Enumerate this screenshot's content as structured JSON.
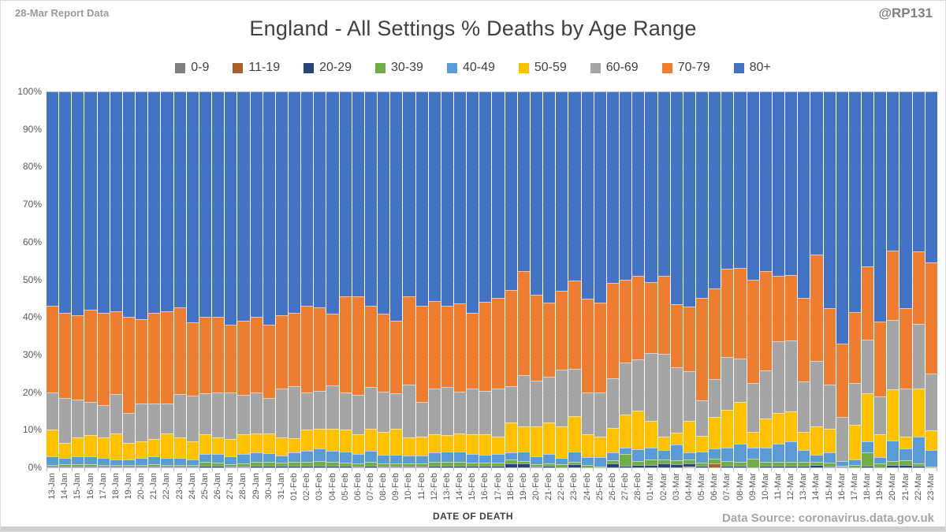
{
  "header": {
    "report_label": "28-Mar Report Data",
    "title": "England - All Settings % Deaths by Age Range",
    "handle": "@RP131"
  },
  "footer": {
    "xaxis_title": "DATE OF DEATH",
    "data_source": "Data Source: coronavirus.data.gov.uk"
  },
  "axes": {
    "y_ticks": [
      "0%",
      "10%",
      "20%",
      "30%",
      "40%",
      "50%",
      "60%",
      "70%",
      "80%",
      "90%",
      "100%"
    ]
  },
  "colors": {
    "grid": "#d9d9d9",
    "axis": "#bfbfbf",
    "text": "#595959"
  },
  "chart_data": {
    "type": "bar",
    "stacking": "percent",
    "title": "England - All Settings % Deaths by Age Range",
    "xlabel": "DATE OF DEATH",
    "ylabel": "",
    "ylim": [
      0,
      100
    ],
    "grid": true,
    "legend_position": "top",
    "categories": [
      "13-Jan",
      "14-Jan",
      "15-Jan",
      "16-Jan",
      "17-Jan",
      "18-Jan",
      "19-Jan",
      "20-Jan",
      "21-Jan",
      "22-Jan",
      "23-Jan",
      "24-Jan",
      "25-Jan",
      "26-Jan",
      "27-Jan",
      "28-Jan",
      "29-Jan",
      "30-Jan",
      "31-Jan",
      "01-Feb",
      "02-Feb",
      "03-Feb",
      "04-Feb",
      "05-Feb",
      "06-Feb",
      "07-Feb",
      "08-Feb",
      "09-Feb",
      "10-Feb",
      "11-Feb",
      "12-Feb",
      "13-Feb",
      "14-Feb",
      "15-Feb",
      "16-Feb",
      "17-Feb",
      "18-Feb",
      "19-Feb",
      "20-Feb",
      "21-Feb",
      "22-Feb",
      "23-Feb",
      "24-Feb",
      "25-Feb",
      "26-Feb",
      "27-Feb",
      "28-Feb",
      "01-Mar",
      "02-Mar",
      "03-Mar",
      "04-Mar",
      "05-Mar",
      "06-Mar",
      "07-Mar",
      "08-Mar",
      "09-Mar",
      "10-Mar",
      "11-Mar",
      "12-Mar",
      "13-Mar",
      "14-Mar",
      "15-Mar",
      "16-Mar",
      "17-Mar",
      "18-Mar",
      "19-Mar",
      "20-Mar",
      "21-Mar",
      "22-Mar",
      "23-Mar"
    ],
    "series": [
      {
        "name": "0-9",
        "color": "#7F7F7F",
        "values": [
          0,
          0,
          0,
          0,
          0,
          0,
          0,
          0,
          0,
          0,
          0,
          0,
          0,
          0,
          0,
          0,
          0,
          0,
          0,
          0,
          0,
          0,
          0,
          0,
          0,
          0,
          0,
          0,
          0,
          0,
          0,
          0,
          0,
          0,
          0,
          0,
          0,
          0,
          0,
          0,
          0,
          0,
          0,
          0,
          0,
          0,
          0,
          0,
          0,
          0,
          0.3,
          0,
          0,
          0,
          0,
          0,
          0,
          0,
          0,
          0,
          0,
          0,
          0,
          0,
          0,
          0,
          0,
          0,
          0,
          0
        ]
      },
      {
        "name": "11-19",
        "color": "#A9622C",
        "values": [
          0,
          0,
          0,
          0,
          0,
          0,
          0,
          0,
          0,
          0,
          0,
          0,
          0,
          0,
          0,
          0,
          0,
          0,
          0,
          0,
          0,
          0,
          0,
          0,
          0,
          0,
          0,
          0,
          0,
          0,
          0,
          0,
          0,
          0,
          0,
          0,
          0,
          0,
          0,
          0,
          0,
          0,
          0,
          0,
          0,
          0,
          0,
          0,
          0,
          0,
          0,
          0,
          1.1,
          0,
          0,
          0,
          0,
          0,
          0,
          0,
          0,
          0,
          0,
          0,
          0,
          0,
          0,
          0,
          0,
          0
        ]
      },
      {
        "name": "20-29",
        "color": "#264478",
        "values": [
          0.2,
          0.3,
          0.3,
          0.3,
          0.2,
          0.2,
          0.2,
          0.2,
          0.3,
          0.2,
          0.2,
          0.2,
          0.5,
          0.4,
          0.3,
          0.3,
          0.5,
          0.5,
          0.4,
          0.5,
          0.5,
          0.5,
          0.5,
          0.4,
          0.3,
          0.5,
          0.3,
          0.3,
          0.3,
          0.3,
          0.5,
          0.4,
          0.5,
          0.4,
          0.4,
          0.4,
          1.1,
          1.0,
          0.2,
          0.4,
          0,
          0.8,
          0,
          0,
          1.1,
          0.5,
          0.7,
          0.6,
          1.1,
          0.8,
          0.7,
          0.4,
          0,
          0.5,
          0.5,
          0,
          0.5,
          0.5,
          0.5,
          0.5,
          0.6,
          0.3,
          0.2,
          0,
          0.5,
          0,
          0.6,
          0.7,
          0.4,
          0
        ]
      },
      {
        "name": "30-39",
        "color": "#70AD47",
        "values": [
          0.5,
          0.5,
          0.5,
          0.5,
          0.5,
          0.4,
          0.4,
          0.5,
          0.5,
          0.5,
          0.5,
          0.4,
          1.0,
          0.8,
          0.6,
          0.8,
          1.0,
          1.0,
          0.8,
          1.0,
          1.0,
          1.2,
          1.0,
          0.9,
          0.8,
          0.9,
          0.7,
          0.7,
          0.7,
          0.7,
          1.0,
          1.0,
          1.0,
          0.8,
          0.8,
          0.8,
          1.1,
          0.7,
          0.6,
          0.7,
          0.8,
          0.7,
          0.7,
          0.3,
          0.7,
          3.1,
          1.0,
          1.6,
          1.0,
          1.0,
          1.0,
          0.9,
          1.2,
          1.1,
          1.0,
          2.4,
          1.0,
          1.0,
          1.0,
          1.0,
          0.9,
          1.0,
          0.3,
          0.7,
          3.5,
          1.0,
          1.0,
          1.2,
          0.7,
          0.3
        ]
      },
      {
        "name": "40-49",
        "color": "#5B9BD5",
        "values": [
          2.3,
          1.7,
          2.2,
          2.2,
          1.8,
          1.4,
          1.4,
          1.8,
          2.2,
          1.8,
          1.8,
          1.4,
          2.1,
          2.3,
          2.1,
          2.4,
          2.5,
          2.3,
          2.0,
          2.5,
          3.0,
          3.3,
          3.0,
          3.0,
          2.4,
          3.0,
          2.3,
          2.3,
          2.2,
          2.2,
          2.5,
          2.8,
          2.8,
          2.4,
          2.2,
          2.4,
          1.7,
          2.5,
          2.1,
          2.4,
          1.7,
          2.8,
          2.1,
          2.4,
          2.1,
          1.7,
          3.1,
          3.1,
          2.5,
          4.2,
          2.0,
          3.0,
          2.7,
          3.7,
          4.9,
          2.9,
          3.8,
          4.8,
          5.5,
          3.1,
          1.9,
          2.7,
          1.2,
          1.5,
          3.0,
          1.7,
          5.5,
          3.1,
          7.0,
          4.3
        ]
      },
      {
        "name": "50-59",
        "color": "#FFC000",
        "values": [
          7.0,
          4.0,
          5.0,
          5.5,
          5.5,
          7.0,
          4.5,
          4.5,
          4.5,
          6.5,
          5.5,
          5.0,
          5.2,
          4.5,
          4.5,
          5.3,
          5.0,
          5.2,
          4.8,
          3.8,
          5.5,
          5.3,
          5.8,
          5.7,
          5.3,
          5.8,
          6.2,
          6.9,
          4.8,
          5.0,
          4.8,
          4.4,
          4.7,
          5.2,
          5.4,
          4.6,
          8.0,
          6.8,
          8.0,
          8.4,
          8.4,
          9.4,
          6.0,
          5.5,
          6.6,
          8.7,
          10.3,
          7.0,
          3.5,
          3.2,
          8.3,
          4.1,
          8.5,
          10.1,
          11.0,
          4.2,
          7.7,
          8.1,
          7.8,
          4.9,
          7.5,
          6.2,
          0,
          9.1,
          12.7,
          6.1,
          13.6,
          3.2,
          12.9,
          5.3
        ]
      },
      {
        "name": "60-69",
        "color": "#A5A5A5",
        "values": [
          10.0,
          12.0,
          10.0,
          9.0,
          8.5,
          10.5,
          8.0,
          10.0,
          9.5,
          8.0,
          11.5,
          12.0,
          10.9,
          12.0,
          12.5,
          10.5,
          11.0,
          9.5,
          13.0,
          13.7,
          10.0,
          10.0,
          11.5,
          10.0,
          10.6,
          11.3,
          10.6,
          9.6,
          14.0,
          9.3,
          12.2,
          12.7,
          11.1,
          12.2,
          11.5,
          12.8,
          9.8,
          13.5,
          12.2,
          12.3,
          15.1,
          12.6,
          11.2,
          11.8,
          13.3,
          14.0,
          13.6,
          18.2,
          22.1,
          17.4,
          13.3,
          9.5,
          10.0,
          14.0,
          11.6,
          12.9,
          12.8,
          19.2,
          19.0,
          13.4,
          17.5,
          11.9,
          11.7,
          11.1,
          14.3,
          10.1,
          18.5,
          12.8,
          17.2,
          15.0
        ]
      },
      {
        "name": "70-79",
        "color": "#ED7D31",
        "values": [
          23.0,
          22.5,
          22.5,
          24.5,
          24.5,
          22.0,
          25.5,
          22.5,
          24.0,
          24.5,
          23.0,
          19.5,
          20.3,
          20.0,
          18.0,
          19.7,
          20.0,
          19.5,
          19.5,
          19.5,
          23.0,
          22.2,
          19.0,
          25.5,
          26.1,
          21.5,
          20.8,
          19.2,
          23.5,
          25.5,
          23.3,
          21.7,
          23.5,
          20.0,
          23.7,
          24.0,
          25.5,
          27.7,
          22.8,
          19.6,
          21.0,
          23.4,
          24.8,
          23.8,
          25.2,
          22.0,
          22.3,
          18.8,
          20.7,
          16.8,
          17.1,
          27.2,
          24.1,
          23.4,
          24.0,
          27.5,
          26.5,
          17.3,
          17.4,
          22.1,
          28.3,
          20.3,
          19.5,
          18.9,
          19.5,
          19.9,
          18.5,
          21.3,
          19.2,
          29.7
        ]
      },
      {
        "name": "80+",
        "color": "#4472C4",
        "values": [
          57.0,
          59.0,
          59.5,
          58.0,
          59.0,
          58.5,
          60.0,
          60.5,
          59.0,
          58.5,
          57.5,
          61.5,
          60.0,
          60.0,
          62.0,
          61.0,
          60.0,
          62.0,
          59.5,
          59.0,
          57.0,
          57.5,
          59.2,
          54.5,
          54.5,
          57.0,
          59.1,
          61.0,
          54.5,
          57.0,
          55.7,
          57.0,
          56.4,
          59.0,
          56.0,
          55.0,
          52.8,
          47.8,
          54.1,
          56.2,
          53.0,
          50.3,
          55.2,
          56.2,
          51.0,
          50.0,
          49.0,
          50.7,
          49.1,
          56.6,
          57.3,
          54.9,
          52.4,
          47.2,
          47.0,
          50.1,
          47.7,
          49.1,
          48.8,
          55.0,
          43.3,
          57.6,
          67.1,
          58.7,
          46.5,
          61.2,
          42.3,
          57.7,
          42.6,
          45.4
        ]
      }
    ]
  }
}
